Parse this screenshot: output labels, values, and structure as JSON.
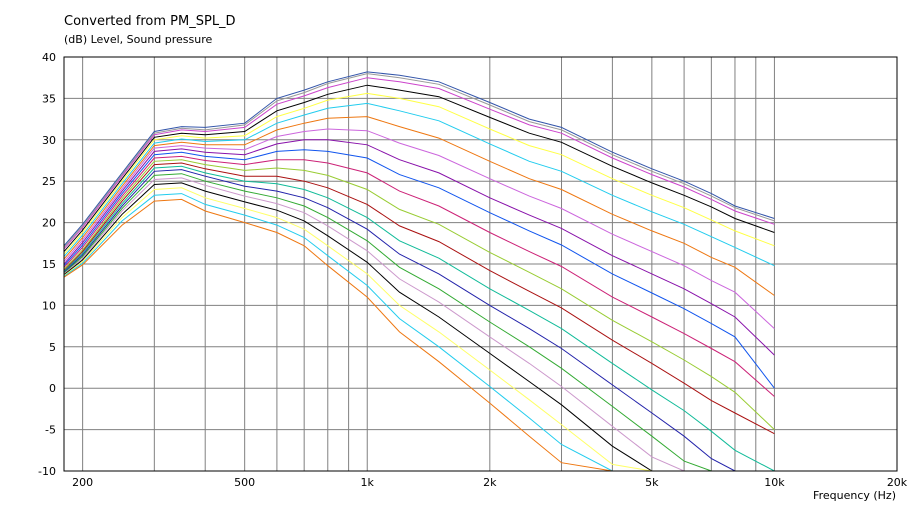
{
  "chart_data": {
    "type": "line",
    "title": "Converted from PM_SPL_D",
    "ylabel": "(dB)  Level, Sound pressure",
    "xlabel": "Frequency  (Hz)",
    "xscale": "log",
    "xlim": [
      180,
      20000
    ],
    "ylim": [
      -10,
      40
    ],
    "grid": true,
    "xticks": [
      {
        "value": 200,
        "label": "200"
      },
      {
        "value": 500,
        "label": "500"
      },
      {
        "value": 1000,
        "label": "1k"
      },
      {
        "value": 2000,
        "label": "2k"
      },
      {
        "value": 5000,
        "label": "5k"
      },
      {
        "value": 10000,
        "label": "10k"
      },
      {
        "value": 20000,
        "label": "20k"
      }
    ],
    "yticks": [
      {
        "value": 40,
        "label": "40"
      },
      {
        "value": 35,
        "label": "35"
      },
      {
        "value": 30,
        "label": "30"
      },
      {
        "value": 25,
        "label": "25"
      },
      {
        "value": 20,
        "label": "20"
      },
      {
        "value": 15,
        "label": "15"
      },
      {
        "value": 10,
        "label": "10"
      },
      {
        "value": 5,
        "label": "5"
      },
      {
        "value": 0,
        "label": "0"
      },
      {
        "value": -5,
        "label": "-5"
      },
      {
        "value": -10,
        "label": "-10"
      }
    ],
    "x": [
      180,
      200,
      250,
      300,
      350,
      400,
      500,
      600,
      700,
      800,
      1000,
      1200,
      1500,
      2000,
      2500,
      3000,
      4000,
      5000,
      6000,
      7000,
      8000,
      10000
    ],
    "series": [
      {
        "color": "#3355aa",
        "values": [
          17.2,
          19.8,
          26.0,
          31.0,
          31.6,
          31.5,
          32.0,
          35.0,
          36.0,
          37.0,
          38.2,
          37.8,
          37.0,
          34.5,
          32.5,
          31.5,
          28.5,
          26.5,
          25.0,
          23.5,
          22.0,
          20.5
        ]
      },
      {
        "color": "#999999",
        "values": [
          17.0,
          19.6,
          25.8,
          30.8,
          31.4,
          31.2,
          31.8,
          34.7,
          35.7,
          36.8,
          38.0,
          37.5,
          36.7,
          34.2,
          32.2,
          31.2,
          28.2,
          26.2,
          24.7,
          23.2,
          21.8,
          20.2
        ]
      },
      {
        "color": "#cc44cc",
        "values": [
          16.8,
          19.4,
          25.6,
          30.6,
          31.2,
          31.0,
          31.5,
          34.3,
          35.3,
          36.3,
          37.5,
          37.0,
          36.2,
          33.7,
          31.8,
          30.8,
          27.8,
          25.8,
          24.3,
          22.8,
          21.4,
          19.8
        ]
      },
      {
        "color": "#000000",
        "values": [
          16.5,
          19.1,
          25.3,
          30.3,
          30.8,
          30.6,
          31.0,
          33.5,
          34.5,
          35.5,
          36.6,
          36.0,
          35.2,
          32.7,
          30.8,
          29.7,
          26.8,
          24.8,
          23.3,
          21.9,
          20.5,
          18.8
        ]
      },
      {
        "color": "#ffff44",
        "values": [
          16.2,
          18.8,
          25.0,
          30.0,
          30.5,
          30.2,
          30.5,
          32.8,
          33.8,
          34.8,
          35.6,
          35.0,
          34.0,
          31.3,
          29.3,
          28.2,
          25.3,
          23.3,
          21.8,
          20.3,
          19.0,
          17.2
        ]
      },
      {
        "color": "#22ccee",
        "values": [
          15.9,
          18.5,
          24.7,
          29.6,
          30.1,
          29.8,
          30.0,
          32.0,
          33.0,
          33.8,
          34.4,
          33.5,
          32.3,
          29.5,
          27.4,
          26.2,
          23.3,
          21.3,
          19.8,
          18.3,
          17.0,
          14.8
        ]
      },
      {
        "color": "#ee7711",
        "values": [
          15.6,
          18.2,
          24.4,
          29.3,
          29.7,
          29.4,
          29.4,
          31.2,
          32.0,
          32.6,
          32.8,
          31.6,
          30.2,
          27.4,
          25.3,
          24.0,
          21.0,
          19.0,
          17.5,
          15.8,
          14.6,
          11.2
        ]
      },
      {
        "color": "#cc66dd",
        "values": [
          15.3,
          17.9,
          24.1,
          29.0,
          29.3,
          29.0,
          28.8,
          30.4,
          31.0,
          31.3,
          31.1,
          29.6,
          28.1,
          25.3,
          23.2,
          21.7,
          18.6,
          16.5,
          14.8,
          13.0,
          11.6,
          7.2
        ]
      },
      {
        "color": "#8811aa",
        "values": [
          15.0,
          17.6,
          23.8,
          28.6,
          28.9,
          28.5,
          28.2,
          29.5,
          30.0,
          30.0,
          29.4,
          27.6,
          26.0,
          23.0,
          20.9,
          19.3,
          16.0,
          13.8,
          12.0,
          10.2,
          8.6,
          4.0
        ]
      },
      {
        "color": "#1155ee",
        "values": [
          14.8,
          17.3,
          23.5,
          28.2,
          28.5,
          28.0,
          27.6,
          28.6,
          28.8,
          28.6,
          27.8,
          25.8,
          24.2,
          21.2,
          19.0,
          17.3,
          13.8,
          11.5,
          9.6,
          7.8,
          6.2,
          0.0
        ]
      },
      {
        "color": "#cc2277",
        "values": [
          14.6,
          17.0,
          23.2,
          27.8,
          28.0,
          27.5,
          27.0,
          27.6,
          27.6,
          27.2,
          26.0,
          23.8,
          22.0,
          18.8,
          16.5,
          14.7,
          11.0,
          8.6,
          6.6,
          4.8,
          3.2,
          -1.0
        ]
      },
      {
        "color": "#99cc33",
        "values": [
          14.4,
          16.7,
          22.9,
          27.4,
          27.6,
          27.0,
          26.3,
          26.6,
          26.3,
          25.7,
          24.0,
          21.6,
          19.8,
          16.4,
          14.0,
          12.0,
          8.2,
          5.6,
          3.4,
          1.4,
          -0.5,
          -5.0
        ]
      },
      {
        "color": "#aa1111",
        "values": [
          14.2,
          16.5,
          22.6,
          27.0,
          27.2,
          26.5,
          25.6,
          25.6,
          25.0,
          24.2,
          22.2,
          19.6,
          17.7,
          14.2,
          11.7,
          9.7,
          5.8,
          3.0,
          0.6,
          -1.5,
          -3.0,
          -5.5
        ]
      },
      {
        "color": "#11bb99",
        "values": [
          14.1,
          16.3,
          22.3,
          26.6,
          26.8,
          26.0,
          25.0,
          24.7,
          24.0,
          23.0,
          20.6,
          17.8,
          15.7,
          12.0,
          9.4,
          7.2,
          3.0,
          -0.2,
          -2.7,
          -5.2,
          -7.5,
          -10.0
        ]
      },
      {
        "color": "#2222aa",
        "values": [
          14.0,
          16.1,
          22.0,
          26.2,
          26.4,
          25.6,
          24.4,
          23.8,
          23.0,
          21.8,
          19.2,
          16.2,
          13.8,
          10.0,
          7.2,
          4.8,
          0.4,
          -3.0,
          -5.8,
          -8.5,
          -10.0,
          -10.0
        ]
      },
      {
        "color": "#33aa33",
        "values": [
          13.9,
          15.9,
          21.7,
          25.7,
          25.9,
          25.0,
          23.8,
          23.0,
          22.0,
          20.6,
          17.8,
          14.6,
          12.0,
          8.0,
          5.0,
          2.4,
          -2.2,
          -5.8,
          -8.8,
          -10.0,
          -10.0,
          -10.0
        ]
      },
      {
        "color": "#cc99cc",
        "values": [
          13.8,
          15.7,
          21.4,
          25.2,
          25.4,
          24.5,
          23.2,
          22.3,
          21.2,
          19.6,
          16.6,
          13.2,
          10.4,
          6.2,
          3.0,
          0.2,
          -4.6,
          -8.3,
          -10.0,
          -10.0,
          -10.0,
          -10.0
        ]
      },
      {
        "color": "#000000",
        "values": [
          13.7,
          15.5,
          21.0,
          24.6,
          24.8,
          23.8,
          22.5,
          21.5,
          20.2,
          18.4,
          15.2,
          11.6,
          8.6,
          4.2,
          0.8,
          -2.0,
          -7.0,
          -10.0,
          -10.0,
          -10.0,
          -10.0,
          -10.0
        ]
      },
      {
        "color": "#ffff66",
        "values": [
          13.6,
          15.3,
          20.6,
          24.0,
          24.2,
          23.0,
          21.7,
          20.6,
          19.2,
          17.2,
          13.8,
          10.0,
          6.8,
          2.2,
          -1.4,
          -4.4,
          -9.2,
          -10.0,
          -10.0,
          -10.0,
          -10.0,
          -10.0
        ]
      },
      {
        "color": "#22ccee",
        "values": [
          13.5,
          15.1,
          20.2,
          23.3,
          23.5,
          22.2,
          20.9,
          19.7,
          18.2,
          16.0,
          12.4,
          8.4,
          5.0,
          0.2,
          -3.6,
          -6.8,
          -10.0,
          -10.0,
          -10.0,
          -10.0,
          -10.0,
          -10.0
        ]
      },
      {
        "color": "#ee7711",
        "values": [
          13.4,
          14.9,
          19.7,
          22.6,
          22.8,
          21.4,
          20.0,
          18.8,
          17.2,
          14.8,
          11.0,
          6.8,
          3.2,
          -1.8,
          -5.8,
          -9.0,
          -10.0,
          -10.0,
          -10.0,
          -10.0,
          -10.0,
          -10.0
        ]
      }
    ]
  }
}
